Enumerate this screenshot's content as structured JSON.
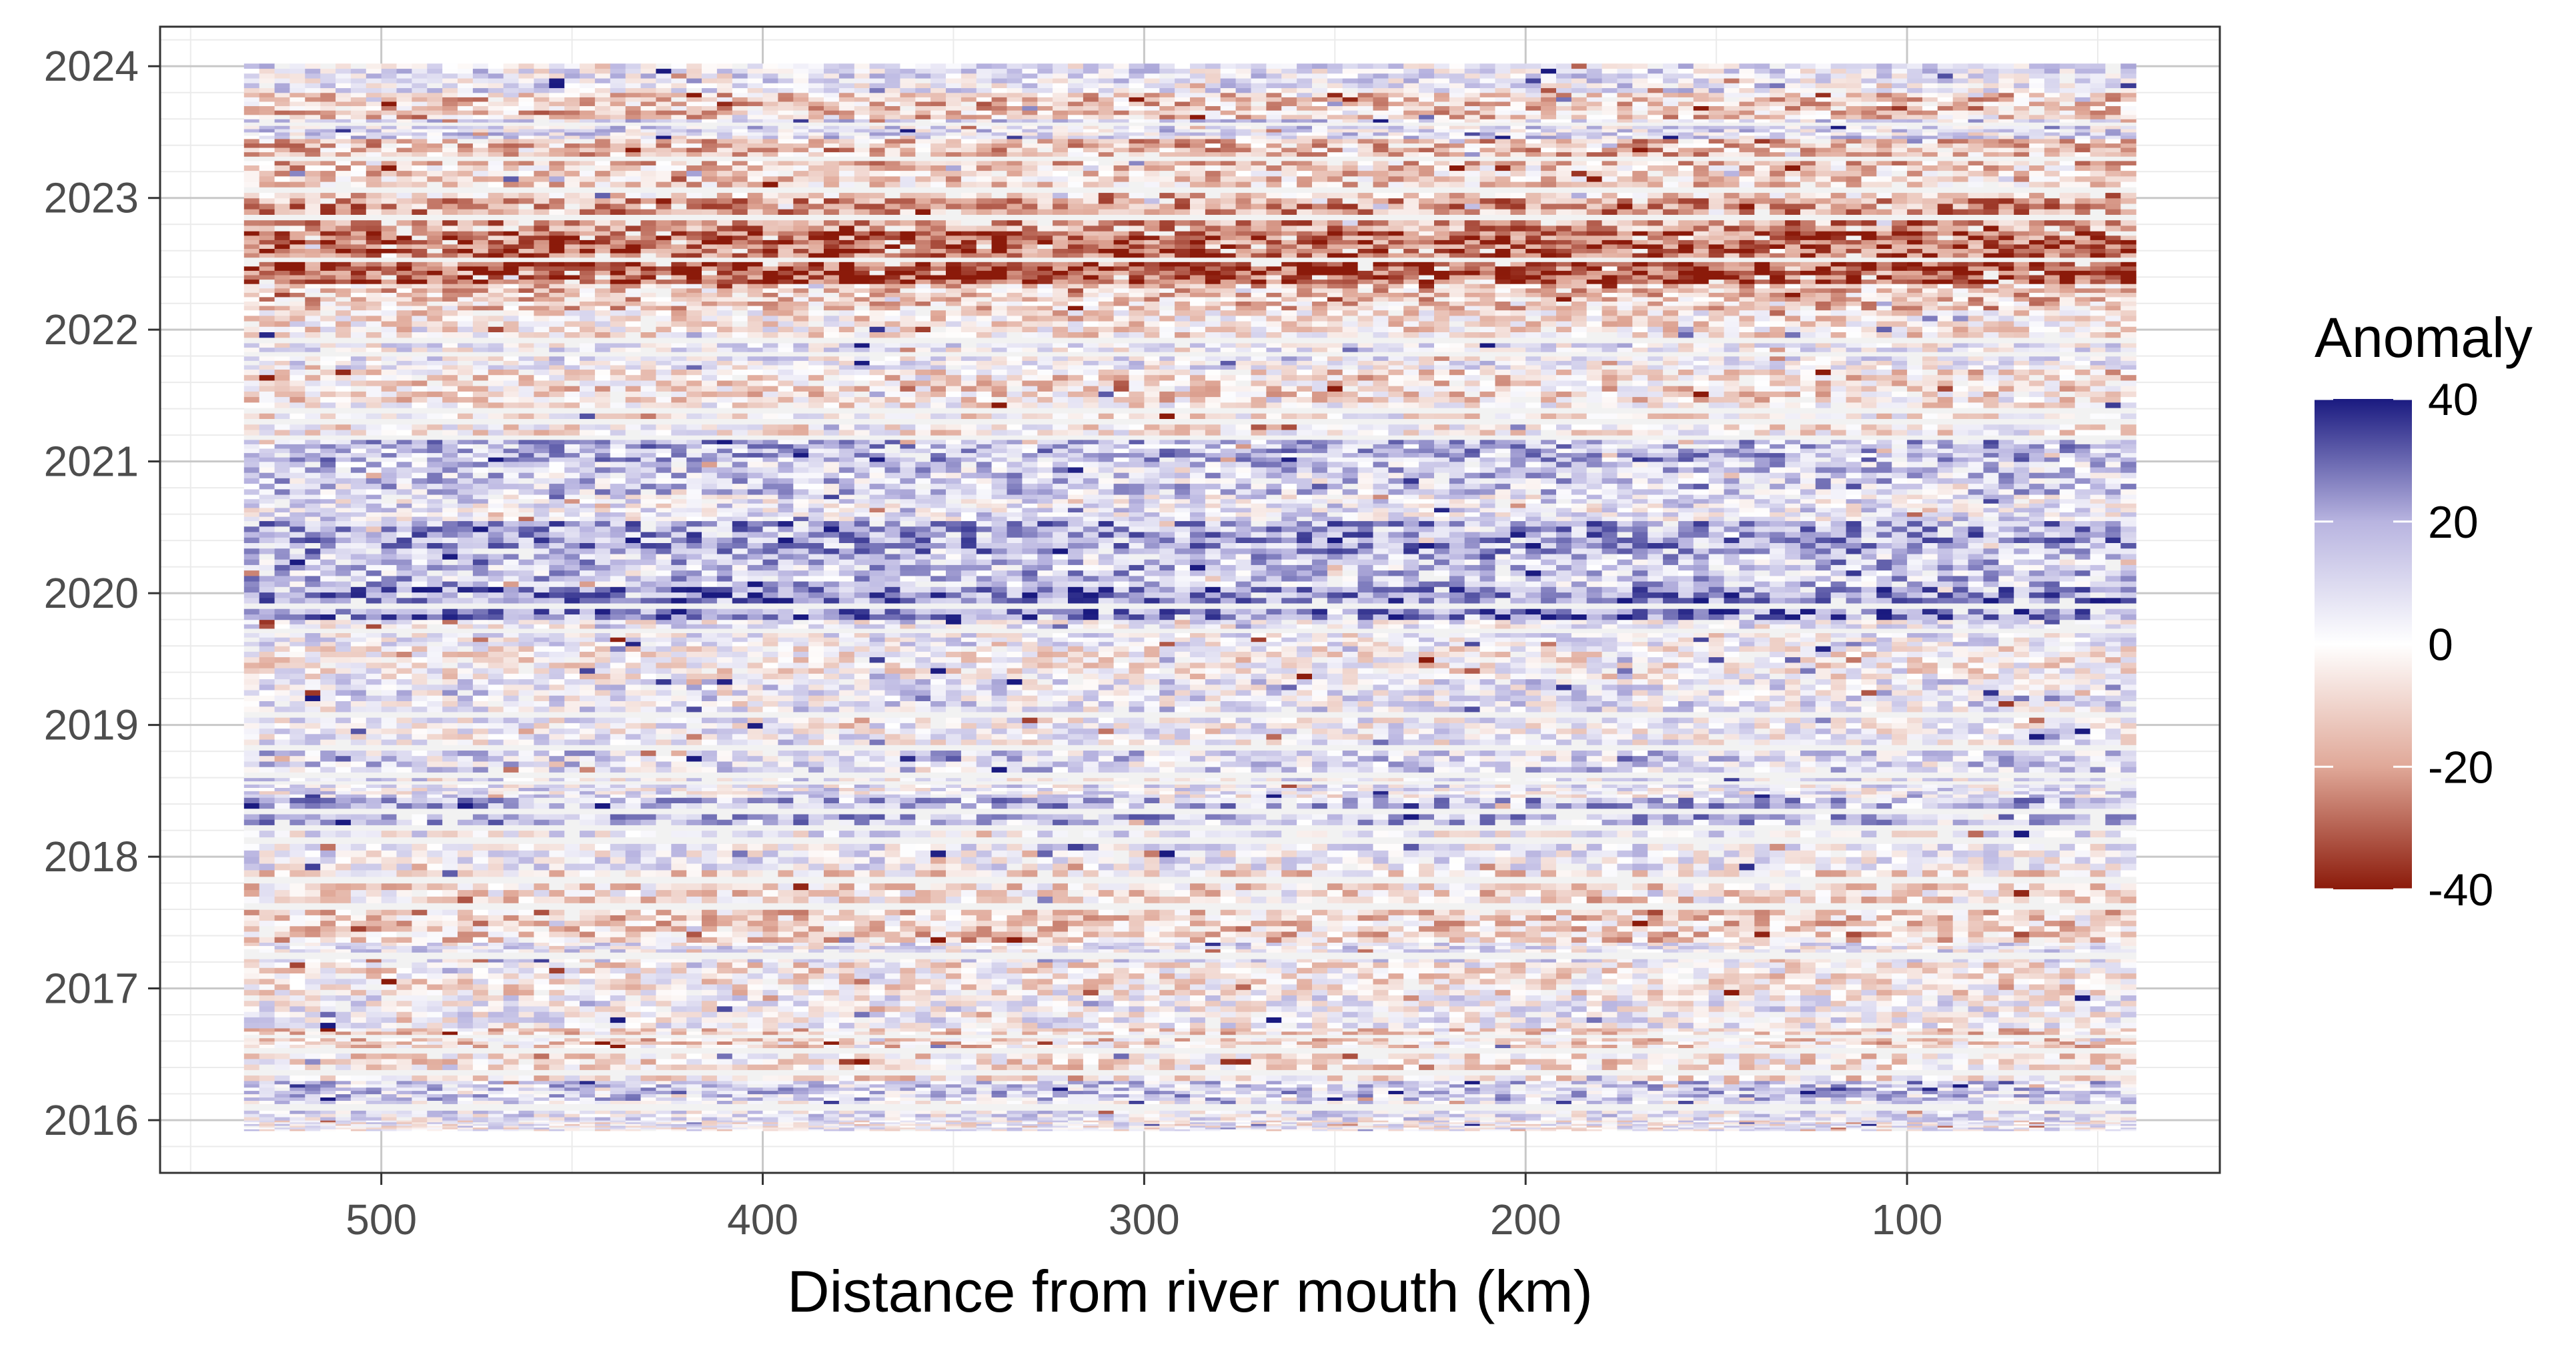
{
  "chart_data": {
    "type": "heatmap",
    "title": "",
    "xlabel": "Distance from river mouth (km)",
    "ylabel": "",
    "xlim": [
      558,
      18
    ],
    "ylim": [
      2015.6,
      2024.3
    ],
    "x_ticks": [
      500,
      400,
      300,
      200,
      100
    ],
    "x_tick_labels": [
      "500",
      "400",
      "300",
      "200",
      "100"
    ],
    "y_ticks": [
      2016,
      2017,
      2018,
      2019,
      2020,
      2021,
      2022,
      2023,
      2024
    ],
    "y_tick_labels": [
      "2016",
      "2017",
      "2018",
      "2019",
      "2020",
      "2021",
      "2022",
      "2023",
      "2024"
    ],
    "data_extent": {
      "x_min_km": 40,
      "x_max_km": 536,
      "t_min": 2015.92,
      "t_max": 2024.02
    },
    "legend": {
      "title": "Anomaly",
      "position": "right",
      "breaks": [
        40,
        20,
        0,
        -20,
        -40
      ],
      "break_labels": [
        "40",
        "20",
        "0",
        "-20",
        "-40"
      ],
      "limits": [
        -40,
        40
      ]
    },
    "colorscale": {
      "high": "#1a1a80",
      "mid_high": "#b8b4e0",
      "mid": "#ffffff",
      "mid_low": "#e0a898",
      "low": "#8b1a0a",
      "missing": "#f2f2f2"
    },
    "grid": true,
    "band_anomalies": [
      {
        "t_start": 2015.92,
        "t_end": 2016.0,
        "mean": 2
      },
      {
        "t_start": 2016.0,
        "t_end": 2016.15,
        "mean": 6
      },
      {
        "t_start": 2016.15,
        "t_end": 2016.3,
        "mean": 12
      },
      {
        "t_start": 2016.3,
        "t_end": 2016.55,
        "mean": -5
      },
      {
        "t_start": 2016.55,
        "t_end": 2016.7,
        "mean": -9
      },
      {
        "t_start": 2016.7,
        "t_end": 2016.95,
        "mean": 3
      },
      {
        "t_start": 2016.95,
        "t_end": 2017.2,
        "mean": -4
      },
      {
        "t_start": 2017.2,
        "t_end": 2017.35,
        "mean": 5
      },
      {
        "t_start": 2017.35,
        "t_end": 2017.6,
        "mean": -10
      },
      {
        "t_start": 2017.6,
        "t_end": 2017.9,
        "mean": -6
      },
      {
        "t_start": 2017.9,
        "t_end": 2018.2,
        "mean": 4
      },
      {
        "t_start": 2018.2,
        "t_end": 2018.45,
        "mean": 16
      },
      {
        "t_start": 2018.45,
        "t_end": 2018.6,
        "mean": 5
      },
      {
        "t_start": 2018.6,
        "t_end": 2018.85,
        "mean": 10
      },
      {
        "t_start": 2018.85,
        "t_end": 2019.1,
        "mean": 3
      },
      {
        "t_start": 2019.1,
        "t_end": 2019.35,
        "mean": 6
      },
      {
        "t_start": 2019.35,
        "t_end": 2019.6,
        "mean": -2
      },
      {
        "t_start": 2019.6,
        "t_end": 2019.8,
        "mean": 4
      },
      {
        "t_start": 2019.8,
        "t_end": 2020.05,
        "mean": 24
      },
      {
        "t_start": 2020.05,
        "t_end": 2020.3,
        "mean": 14
      },
      {
        "t_start": 2020.3,
        "t_end": 2020.55,
        "mean": 20
      },
      {
        "t_start": 2020.55,
        "t_end": 2020.75,
        "mean": 6
      },
      {
        "t_start": 2020.75,
        "t_end": 2021.0,
        "mean": 12
      },
      {
        "t_start": 2021.0,
        "t_end": 2021.2,
        "mean": 16
      },
      {
        "t_start": 2021.2,
        "t_end": 2021.45,
        "mean": -3
      },
      {
        "t_start": 2021.45,
        "t_end": 2021.7,
        "mean": -7
      },
      {
        "t_start": 2021.7,
        "t_end": 2021.9,
        "mean": 4
      },
      {
        "t_start": 2021.9,
        "t_end": 2022.15,
        "mean": -5
      },
      {
        "t_start": 2022.15,
        "t_end": 2022.35,
        "mean": -12
      },
      {
        "t_start": 2022.35,
        "t_end": 2022.55,
        "mean": -32
      },
      {
        "t_start": 2022.55,
        "t_end": 2022.75,
        "mean": -28
      },
      {
        "t_start": 2022.75,
        "t_end": 2023.0,
        "mean": -20
      },
      {
        "t_start": 2023.0,
        "t_end": 2023.25,
        "mean": -10
      },
      {
        "t_start": 2023.25,
        "t_end": 2023.45,
        "mean": -14
      },
      {
        "t_start": 2023.45,
        "t_end": 2023.6,
        "mean": 8
      },
      {
        "t_start": 2023.6,
        "t_end": 2023.8,
        "mean": -12
      },
      {
        "t_start": 2023.8,
        "t_end": 2024.02,
        "mean": 6
      }
    ]
  }
}
